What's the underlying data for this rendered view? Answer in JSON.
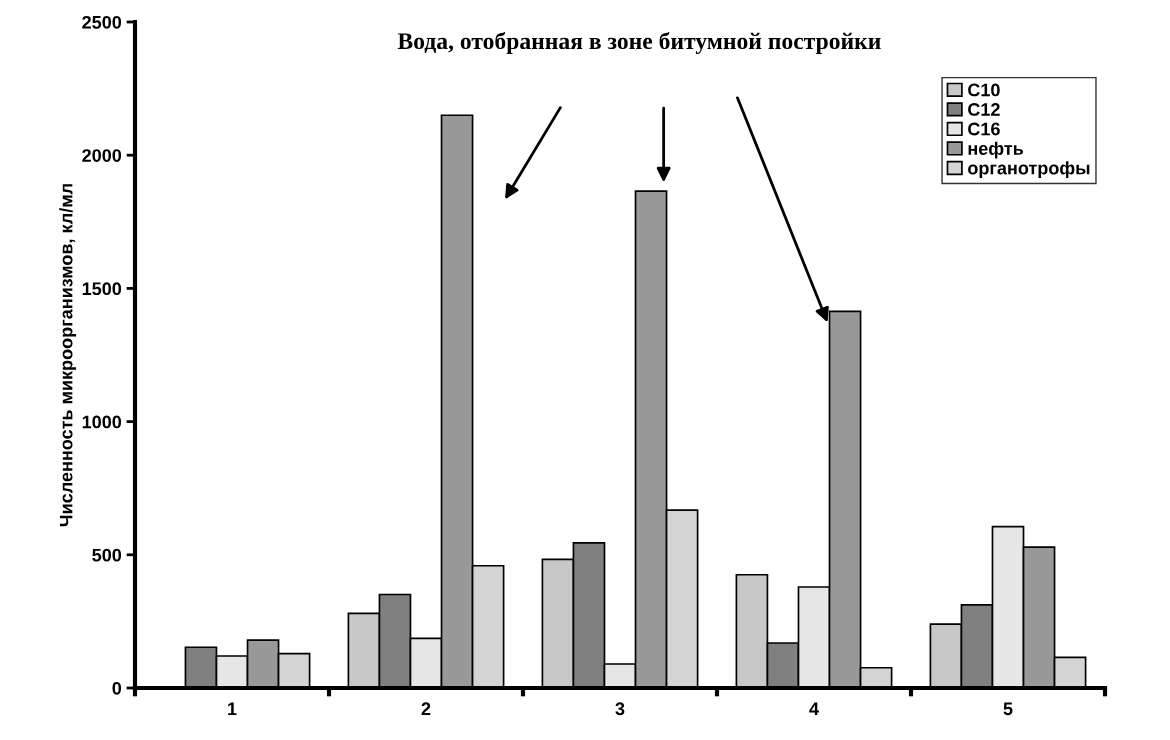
{
  "chart_data": {
    "type": "bar",
    "ylabel": "Численность микроорганизмов, кл/мл",
    "categories": [
      "1",
      "2",
      "3",
      "4",
      "5"
    ],
    "series": [
      {
        "name": "C10",
        "color": "#c8c8c8",
        "values": [
          null,
          280,
          483,
          425,
          240
        ]
      },
      {
        "name": "C12",
        "color": "#808080",
        "values": [
          153,
          351,
          545,
          169,
          312
        ]
      },
      {
        "name": "C16",
        "color": "#e6e6e6",
        "values": [
          120,
          186,
          90,
          379,
          606
        ]
      },
      {
        "name": "нефть",
        "color": "#999999",
        "values": [
          180,
          2150,
          1865,
          1414,
          529
        ]
      },
      {
        "name": "органотрофы",
        "color": "#d4d4d4",
        "values": [
          129,
          459,
          668,
          76,
          115
        ]
      }
    ],
    "ylim": [
      0,
      2500
    ],
    "yticks": [
      0,
      500,
      1000,
      1500,
      2000,
      2500
    ],
    "annotations": [
      "Вода, отобранная в зоне битумной постройки"
    ],
    "legend": "top right",
    "grid": false
  }
}
